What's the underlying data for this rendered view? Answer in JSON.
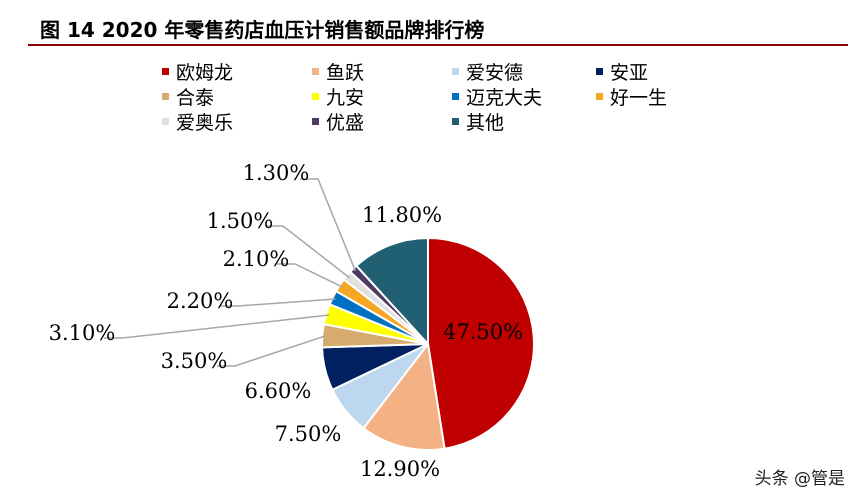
{
  "figure_title": "图 14 2020 年零售药店血压计销售额品牌排行榜",
  "watermark": "头条 @管是",
  "chart_data": {
    "type": "pie",
    "title": "",
    "legend_position": "top",
    "slices": [
      {
        "label": "欧姆龙",
        "value": 47.5,
        "display": "47.50%",
        "color": "#c00000"
      },
      {
        "label": "鱼跃",
        "value": 12.9,
        "display": "12.90%",
        "color": "#f4b183"
      },
      {
        "label": "爱安德",
        "value": 7.5,
        "display": "7.50%",
        "color": "#bdd7ee"
      },
      {
        "label": "安亚",
        "value": 6.6,
        "display": "6.60%",
        "color": "#002060"
      },
      {
        "label": "合泰",
        "value": 3.5,
        "display": "3.50%",
        "color": "#d6ab6e"
      },
      {
        "label": "九安",
        "value": 3.1,
        "display": "3.10%",
        "color": "#ffff00"
      },
      {
        "label": "迈克大夫",
        "value": 2.2,
        "display": "2.20%",
        "color": "#0070c0"
      },
      {
        "label": "好一生",
        "value": 2.1,
        "display": "2.10%",
        "color": "#f5a623"
      },
      {
        "label": "爱奥乐",
        "value": 1.5,
        "display": "1.50%",
        "color": "#e0e0e0"
      },
      {
        "label": "优盛",
        "value": 1.3,
        "display": "1.30%",
        "color": "#4f3a62"
      },
      {
        "label": "其他",
        "value": 11.8,
        "display": "11.80%",
        "color": "#215f73"
      }
    ]
  }
}
